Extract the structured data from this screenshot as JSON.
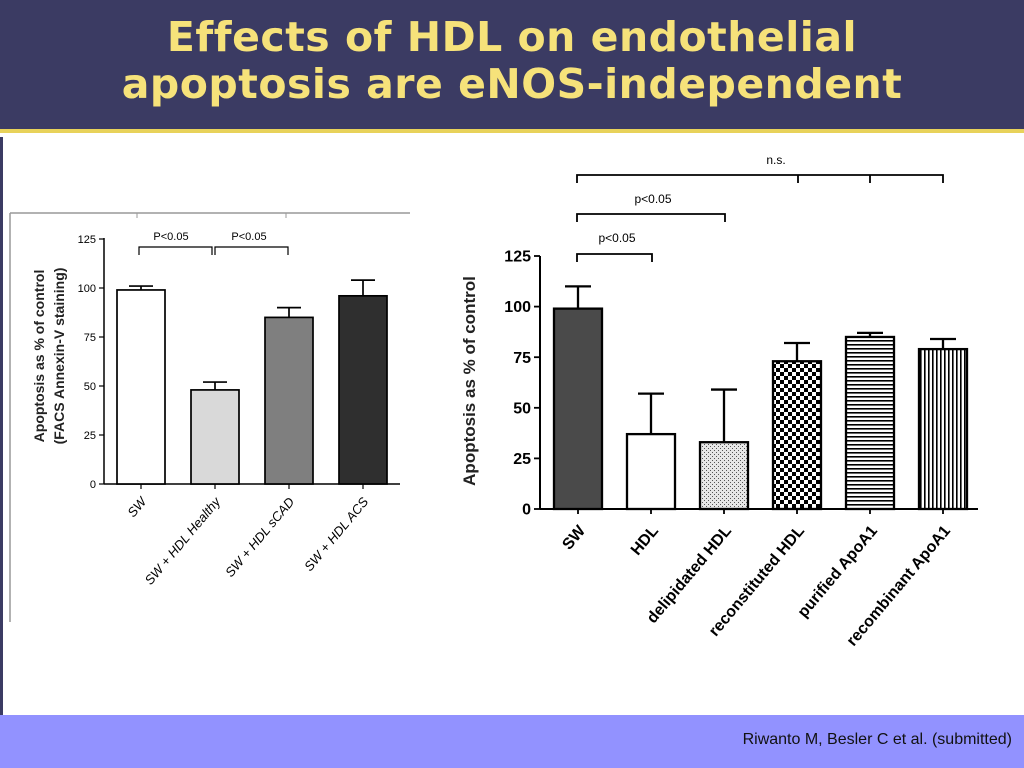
{
  "slide": {
    "title_line1": "Effects of HDL on endothelial",
    "title_line2": "apoptosis are eNOS-independent",
    "citation": "Riwanto M, Besler C et al. (submitted)",
    "colors": {
      "header_bg": "#3b3b63",
      "title": "#f6e27a",
      "footer_bg": "#9292ff",
      "accent_line": "#e8d25a"
    }
  },
  "chart_data": [
    {
      "type": "bar",
      "ylabel_line1": "Apoptosis as % of control",
      "ylabel_line2": "(FACS Annexin-V staining)",
      "ylim": [
        0,
        125
      ],
      "yticks": [
        "0",
        "25",
        "50",
        "75",
        "100",
        "125"
      ],
      "categories": [
        "SW",
        "SW + HDL Healthy",
        "SW + HDL sCAD",
        "SW + HDL ACS"
      ],
      "values": [
        99,
        48,
        85,
        96
      ],
      "errors": [
        2,
        4,
        5,
        8
      ],
      "fills": [
        "#ffffff",
        "#d9d9d9",
        "#7f7f7f",
        "#2f2f2f"
      ],
      "annotations": [
        "P<0.05",
        "P<0.05"
      ]
    },
    {
      "type": "bar",
      "ylabel": "Apoptosis as % of control",
      "ylim": [
        0,
        125
      ],
      "yticks": [
        "0",
        "25",
        "50",
        "75",
        "100",
        "125"
      ],
      "categories": [
        "SW",
        "HDL",
        "delipidated HDL",
        "reconstituted HDL",
        "purified ApoA1",
        "recombinant ApoA1"
      ],
      "values": [
        99,
        37,
        33,
        73,
        85,
        79
      ],
      "errors": [
        11,
        20,
        26,
        9,
        2,
        5
      ],
      "patterns": [
        "solid-dark",
        "white",
        "stipple",
        "checker",
        "horizontal-lines",
        "vertical-lines"
      ],
      "annotations": [
        "n.s.",
        "p<0.05",
        "p<0.05"
      ]
    }
  ]
}
